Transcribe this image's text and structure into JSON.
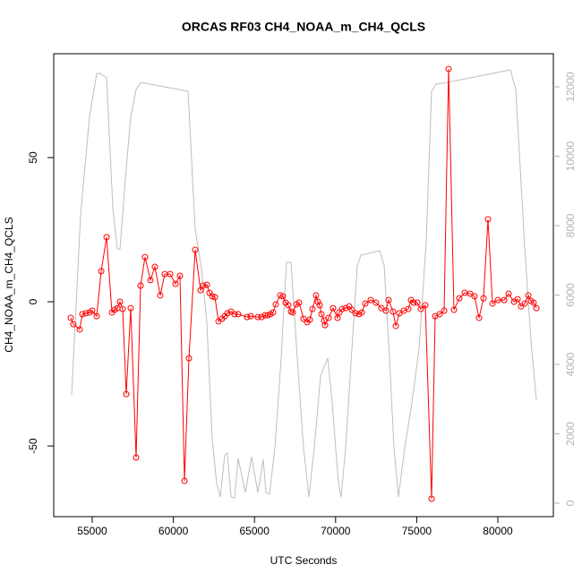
{
  "chart_data": {
    "type": "line",
    "title": "ORCAS RF03 CH4_NOAA_m_CH4_QCLS",
    "x_label": "UTC Seconds",
    "y_label": "CH4_NOAA_m_CH4_QCLS",
    "xlim": [
      52627,
      83422
    ],
    "ylim": [
      -74.5,
      86
    ],
    "y2lim": [
      -387,
      12955
    ],
    "xticks": [
      55000,
      60000,
      65000,
      70000,
      75000,
      80000
    ],
    "yticks": [
      -50,
      0,
      50
    ],
    "y2ticks": [
      0,
      2000,
      4000,
      6000,
      8000,
      10000,
      12000
    ],
    "series": [
      {
        "color": "#ff0000",
        "markers": true,
        "x": [
          53675,
          53841,
          54227,
          54393,
          54614,
          54834,
          55000,
          55276,
          55552,
          55883,
          56214,
          56380,
          56545,
          56711,
          56876,
          57097,
          57373,
          57704,
          57980,
          58256,
          58587,
          58863,
          59194,
          59470,
          59802,
          60133,
          60409,
          60685,
          60961,
          61347,
          61678,
          61844,
          62064,
          62230,
          62395,
          62561,
          62782,
          63003,
          63168,
          63334,
          63554,
          63775,
          63996,
          64548,
          64769,
          65210,
          65431,
          65652,
          65817,
          65983,
          66148,
          66314,
          66590,
          66755,
          66921,
          67087,
          67252,
          67362,
          67583,
          67749,
          68025,
          68245,
          68411,
          68576,
          68797,
          68907,
          69018,
          69128,
          69294,
          69349,
          69570,
          69846,
          70122,
          70232,
          70398,
          70618,
          70839,
          71005,
          71226,
          71446,
          71612,
          71833,
          72164,
          72495,
          72826,
          73102,
          73268,
          73544,
          73710,
          73931,
          74207,
          74483,
          74648,
          74814,
          75035,
          75255,
          75531,
          75918,
          76138,
          76414,
          76690,
          76966,
          77297,
          77628,
          77959,
          78290,
          78566,
          78842,
          79118,
          79394,
          79670,
          80001,
          80388,
          80664,
          80995,
          81216,
          81437,
          81657,
          81878,
          82044,
          82209,
          82375
        ],
        "values": [
          -5.6,
          -7.8,
          -9.6,
          -4.3,
          -4.0,
          -3.7,
          -3.1,
          -5.0,
          10.6,
          22.4,
          -3.7,
          -2.8,
          -2.2,
          0,
          -2.5,
          -32.0,
          -2.2,
          -54.0,
          5.6,
          15.5,
          7.5,
          12.1,
          2.2,
          9.6,
          9.6,
          6.2,
          9.0,
          -62.1,
          -19.6,
          18.0,
          4.0,
          5.6,
          5.9,
          3.1,
          1.9,
          1.6,
          -6.8,
          -5.9,
          -5.0,
          -4.0,
          -3.4,
          -4.3,
          -4.3,
          -5.3,
          -5.0,
          -5.3,
          -5.3,
          -4.7,
          -4.7,
          -4.3,
          -3.7,
          -0.9,
          2.2,
          1.9,
          -0.3,
          -1.2,
          -3.4,
          -3.7,
          -0.9,
          -0.3,
          -5.9,
          -7.1,
          -6.2,
          -2.5,
          2.2,
          0,
          -1.2,
          -4.3,
          -6.5,
          -8.1,
          -5.6,
          -2.2,
          -5.6,
          -3.7,
          -2.5,
          -2.2,
          -1.6,
          -2.8,
          -4.0,
          -4.3,
          -3.7,
          -0.6,
          0.6,
          -0.3,
          -2.2,
          -3.1,
          0.6,
          -3.4,
          -8.4,
          -4.0,
          -3.1,
          -2.5,
          0.6,
          -0.3,
          -0.3,
          -2.5,
          -1.2,
          -68.3,
          -5.0,
          -4.3,
          -3.1,
          80.7,
          -2.8,
          1.2,
          3.1,
          2.8,
          1.9,
          -5.6,
          1.2,
          28.6,
          -0.6,
          0.6,
          0.6,
          2.8,
          0,
          0.9,
          -1.6,
          -0.6,
          2.2,
          0.3,
          -0.3,
          -2.2
        ]
      },
      {
        "color": "#bebebe",
        "axis": "y2",
        "markers": false,
        "x": [
          53730,
          54282,
          54834,
          55276,
          55497,
          55883,
          56269,
          56545,
          56711,
          57042,
          57373,
          57704,
          57980,
          60354,
          60906,
          61347,
          61734,
          62064,
          62395,
          62671,
          62892,
          63168,
          63334,
          63554,
          63775,
          63996,
          64438,
          64824,
          65210,
          65541,
          65707,
          65928,
          66259,
          66645,
          66976,
          67252,
          67639,
          68025,
          68356,
          68687,
          69073,
          69515,
          69791,
          70177,
          70343,
          70618,
          71005,
          71336,
          71557,
          72716,
          72992,
          73323,
          73599,
          73875,
          74261,
          74703,
          75144,
          75586,
          75918,
          76193,
          76911,
          80774,
          81105,
          81326,
          81657,
          82044,
          82375
        ],
        "values": [
          3123,
          8310,
          11148,
          12387,
          12387,
          12258,
          8516,
          7329,
          7329,
          9342,
          11148,
          11923,
          12129,
          11923,
          11871,
          7897,
          6761,
          5213,
          1858,
          568,
          181,
          1394,
          1445,
          181,
          155,
          1290,
          310,
          1342,
          310,
          1265,
          310,
          258,
          1600,
          4181,
          6942,
          6942,
          4181,
          1600,
          181,
          1600,
          3665,
          4181,
          2890,
          568,
          181,
          1600,
          4439,
          6839,
          7148,
          7277,
          6865,
          4181,
          1600,
          181,
          1600,
          2890,
          4439,
          7535,
          11871,
          12077,
          12129,
          12490,
          11923,
          10116,
          7381,
          4697,
          2968
        ]
      }
    ]
  }
}
